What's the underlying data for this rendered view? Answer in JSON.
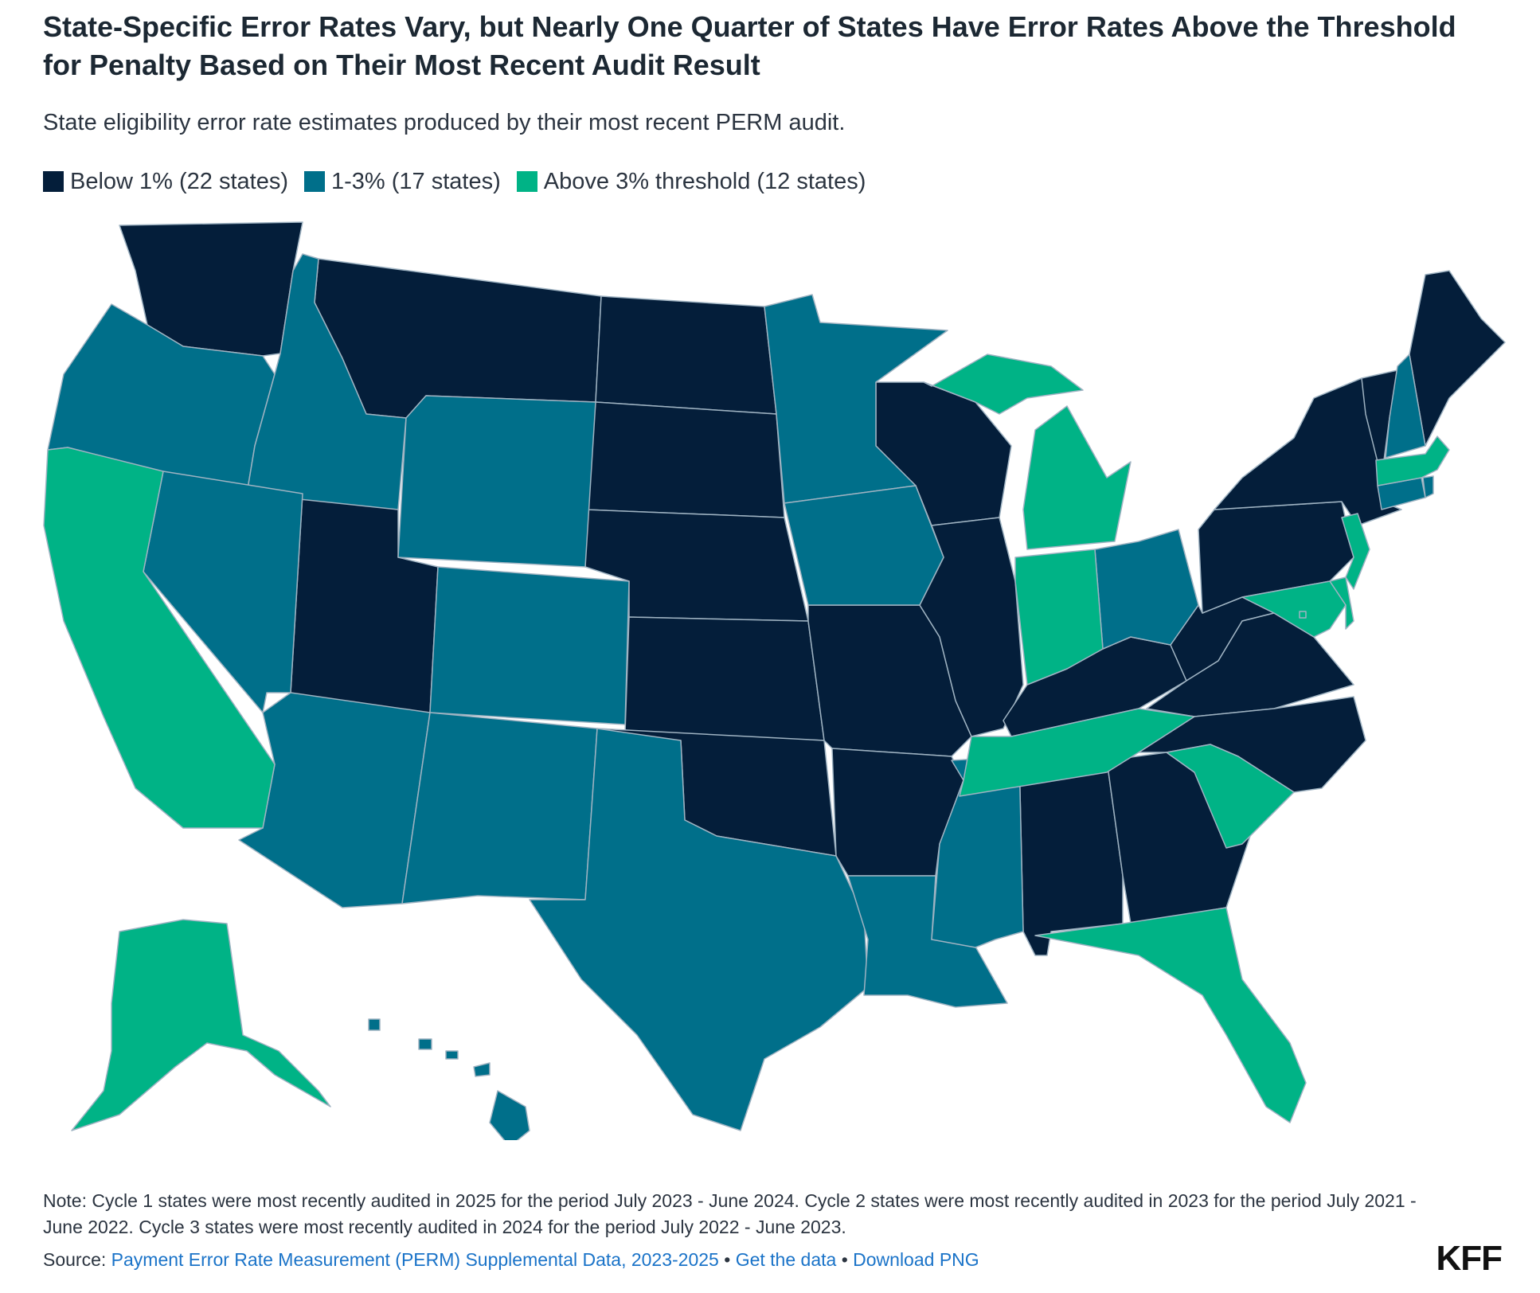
{
  "header": {
    "title": "State-Specific Error Rates Vary, but Nearly One Quarter of States Have Error Rates Above the Threshold for Penalty Based on Their Most Recent Audit Result",
    "subtitle": "State eligibility error rate estimates produced by their most recent PERM audit."
  },
  "colors": {
    "below1": "#041e3a",
    "one_to_three": "#006f8a",
    "above3": "#00b386",
    "border": "#9fb3c2",
    "link": "#1a73c8"
  },
  "legend": {
    "items": [
      {
        "label": "Below 1% (22 states)",
        "color": "#041e3a"
      },
      {
        "label": "1-3% (17 states)",
        "color": "#006f8a"
      },
      {
        "label": "Above 3% threshold (12 states)",
        "color": "#00b386"
      }
    ]
  },
  "chart_data": {
    "type": "choropleth",
    "categories": {
      "below1": [
        "Washington",
        "Montana",
        "North Dakota",
        "South Dakota",
        "Nebraska",
        "Kansas",
        "Oklahoma",
        "Utah",
        "Missouri",
        "Arkansas",
        "Wisconsin",
        "Illinois",
        "Kentucky",
        "West Virginia",
        "Virginia",
        "North Carolina",
        "Alabama",
        "Georgia",
        "Pennsylvania",
        "New York",
        "Vermont",
        "Maine"
      ],
      "one_to_three": [
        "Oregon",
        "Idaho",
        "Nevada",
        "Wyoming",
        "Colorado",
        "Arizona",
        "New Mexico",
        "Texas",
        "Minnesota",
        "Iowa",
        "Louisiana",
        "Mississippi",
        "Ohio",
        "New Hampshire",
        "Connecticut",
        "Hawaii",
        "Rhode Island"
      ],
      "above3": [
        "California",
        "Alaska",
        "Michigan",
        "Indiana",
        "Tennessee",
        "South Carolina",
        "Florida",
        "New Jersey",
        "Delaware",
        "Maryland",
        "Massachusetts",
        "District of Columbia"
      ]
    }
  },
  "footer": {
    "note": "Note: Cycle 1 states were most recently audited in 2025 for the period July 2023 - June 2024. Cycle 2 states were most recently audited in 2023 for the period July 2021 - June 2022. Cycle 3 states were most recently audited in 2024 for the period July 2022 - June 2023.",
    "source_label": "Source:",
    "source_link": "Payment Error Rate Measurement (PERM) Supplemental Data, 2023-2025",
    "separator": "•",
    "get_data": "Get the data",
    "download_png": "Download PNG",
    "logo": "KFF"
  }
}
